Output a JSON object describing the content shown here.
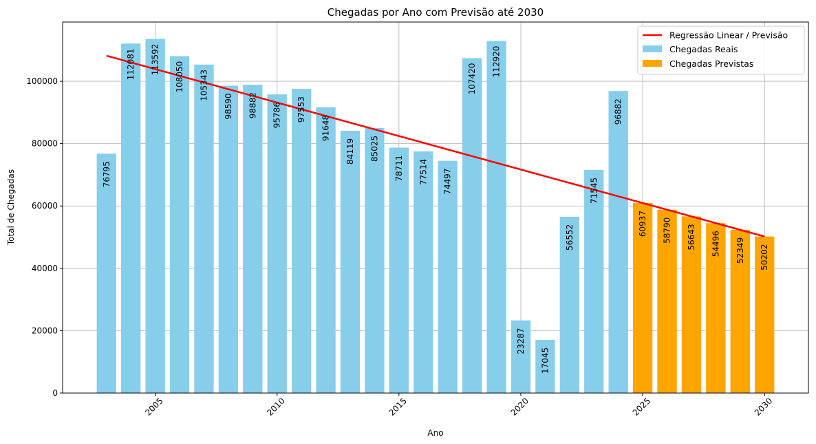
{
  "chart_data": {
    "type": "bar",
    "title": "Chegadas por Ano com Previsão até 2030",
    "xlabel": "Ano",
    "ylabel": "Total de Chegadas",
    "xlim": [
      2001.2,
      2031.8
    ],
    "ylim": [
      0,
      119000
    ],
    "x_ticks": [
      2005,
      2010,
      2015,
      2020,
      2025,
      2030
    ],
    "y_ticks": [
      0,
      20000,
      40000,
      60000,
      80000,
      100000
    ],
    "grid": true,
    "legend_position": "top-right",
    "series": [
      {
        "name": "Chegadas Reais",
        "type": "bar",
        "color": "#87ceeb",
        "x": [
          2003,
          2004,
          2005,
          2006,
          2007,
          2008,
          2009,
          2010,
          2011,
          2012,
          2013,
          2014,
          2015,
          2016,
          2017,
          2018,
          2019,
          2020,
          2021,
          2022,
          2023,
          2024
        ],
        "values": [
          76795,
          112081,
          113592,
          108050,
          105343,
          98590,
          98882,
          95786,
          97553,
          91648,
          84119,
          85025,
          78711,
          77514,
          74497,
          107420,
          112920,
          23287,
          17045,
          56552,
          71545,
          96882
        ]
      },
      {
        "name": "Chegadas Previstas",
        "type": "bar",
        "color": "#ffa500",
        "x": [
          2025,
          2026,
          2027,
          2028,
          2029,
          2030
        ],
        "values": [
          60937,
          58790,
          56643,
          54496,
          52349,
          50202
        ]
      },
      {
        "name": "Regressão Linear / Previsão",
        "type": "line",
        "color": "#ff0000",
        "x": [
          2003,
          2030
        ],
        "values": [
          108200,
          50202
        ]
      }
    ]
  }
}
